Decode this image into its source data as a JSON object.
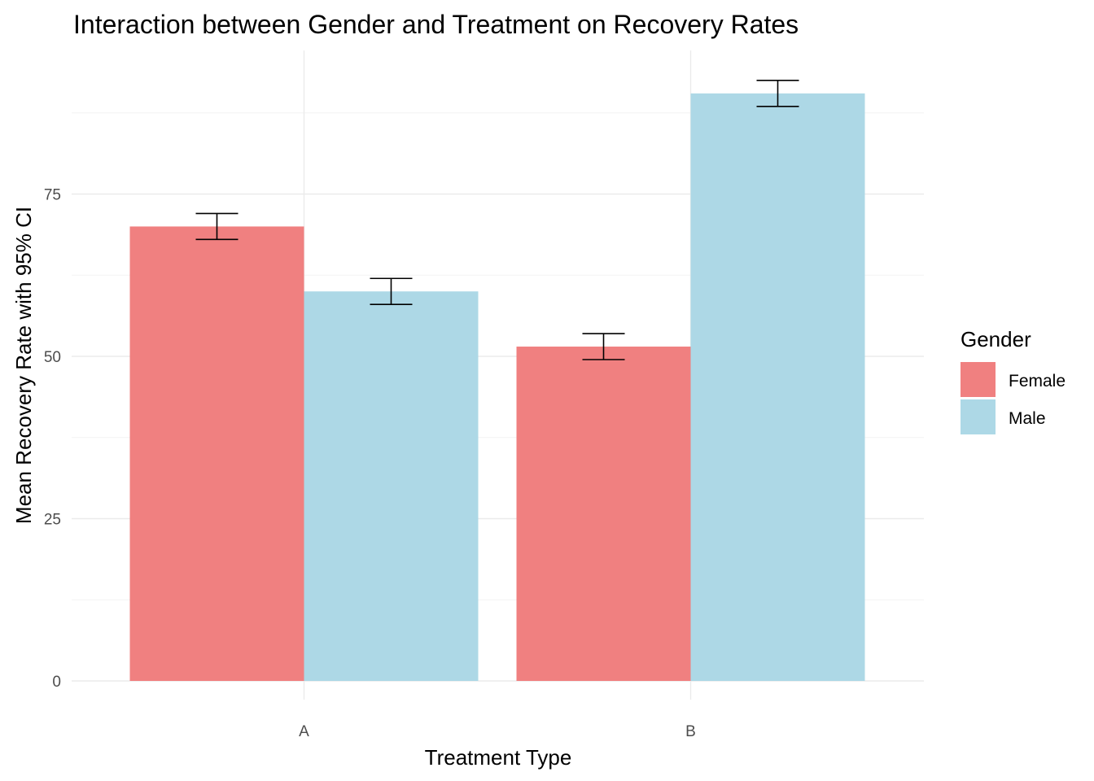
{
  "chart_data": {
    "type": "bar",
    "title": "Interaction between Gender and Treatment on Recovery Rates",
    "xlabel": "Treatment Type",
    "ylabel": "Mean Recovery Rate with 95% CI",
    "categories": [
      "A",
      "B"
    ],
    "ylim": [
      0,
      95
    ],
    "yticks": [
      0,
      25,
      50,
      75
    ],
    "grid": true,
    "legend": {
      "title": "Gender",
      "position": "right"
    },
    "series": [
      {
        "name": "Female",
        "color": "#F08080",
        "values": [
          70.0,
          51.5
        ],
        "ci_low": [
          68.0,
          49.5
        ],
        "ci_high": [
          72.0,
          53.5
        ]
      },
      {
        "name": "Male",
        "color": "#ADD8E6",
        "values": [
          60.0,
          90.5
        ],
        "ci_low": [
          58.0,
          88.5
        ],
        "ci_high": [
          62.0,
          92.5
        ]
      }
    ]
  }
}
